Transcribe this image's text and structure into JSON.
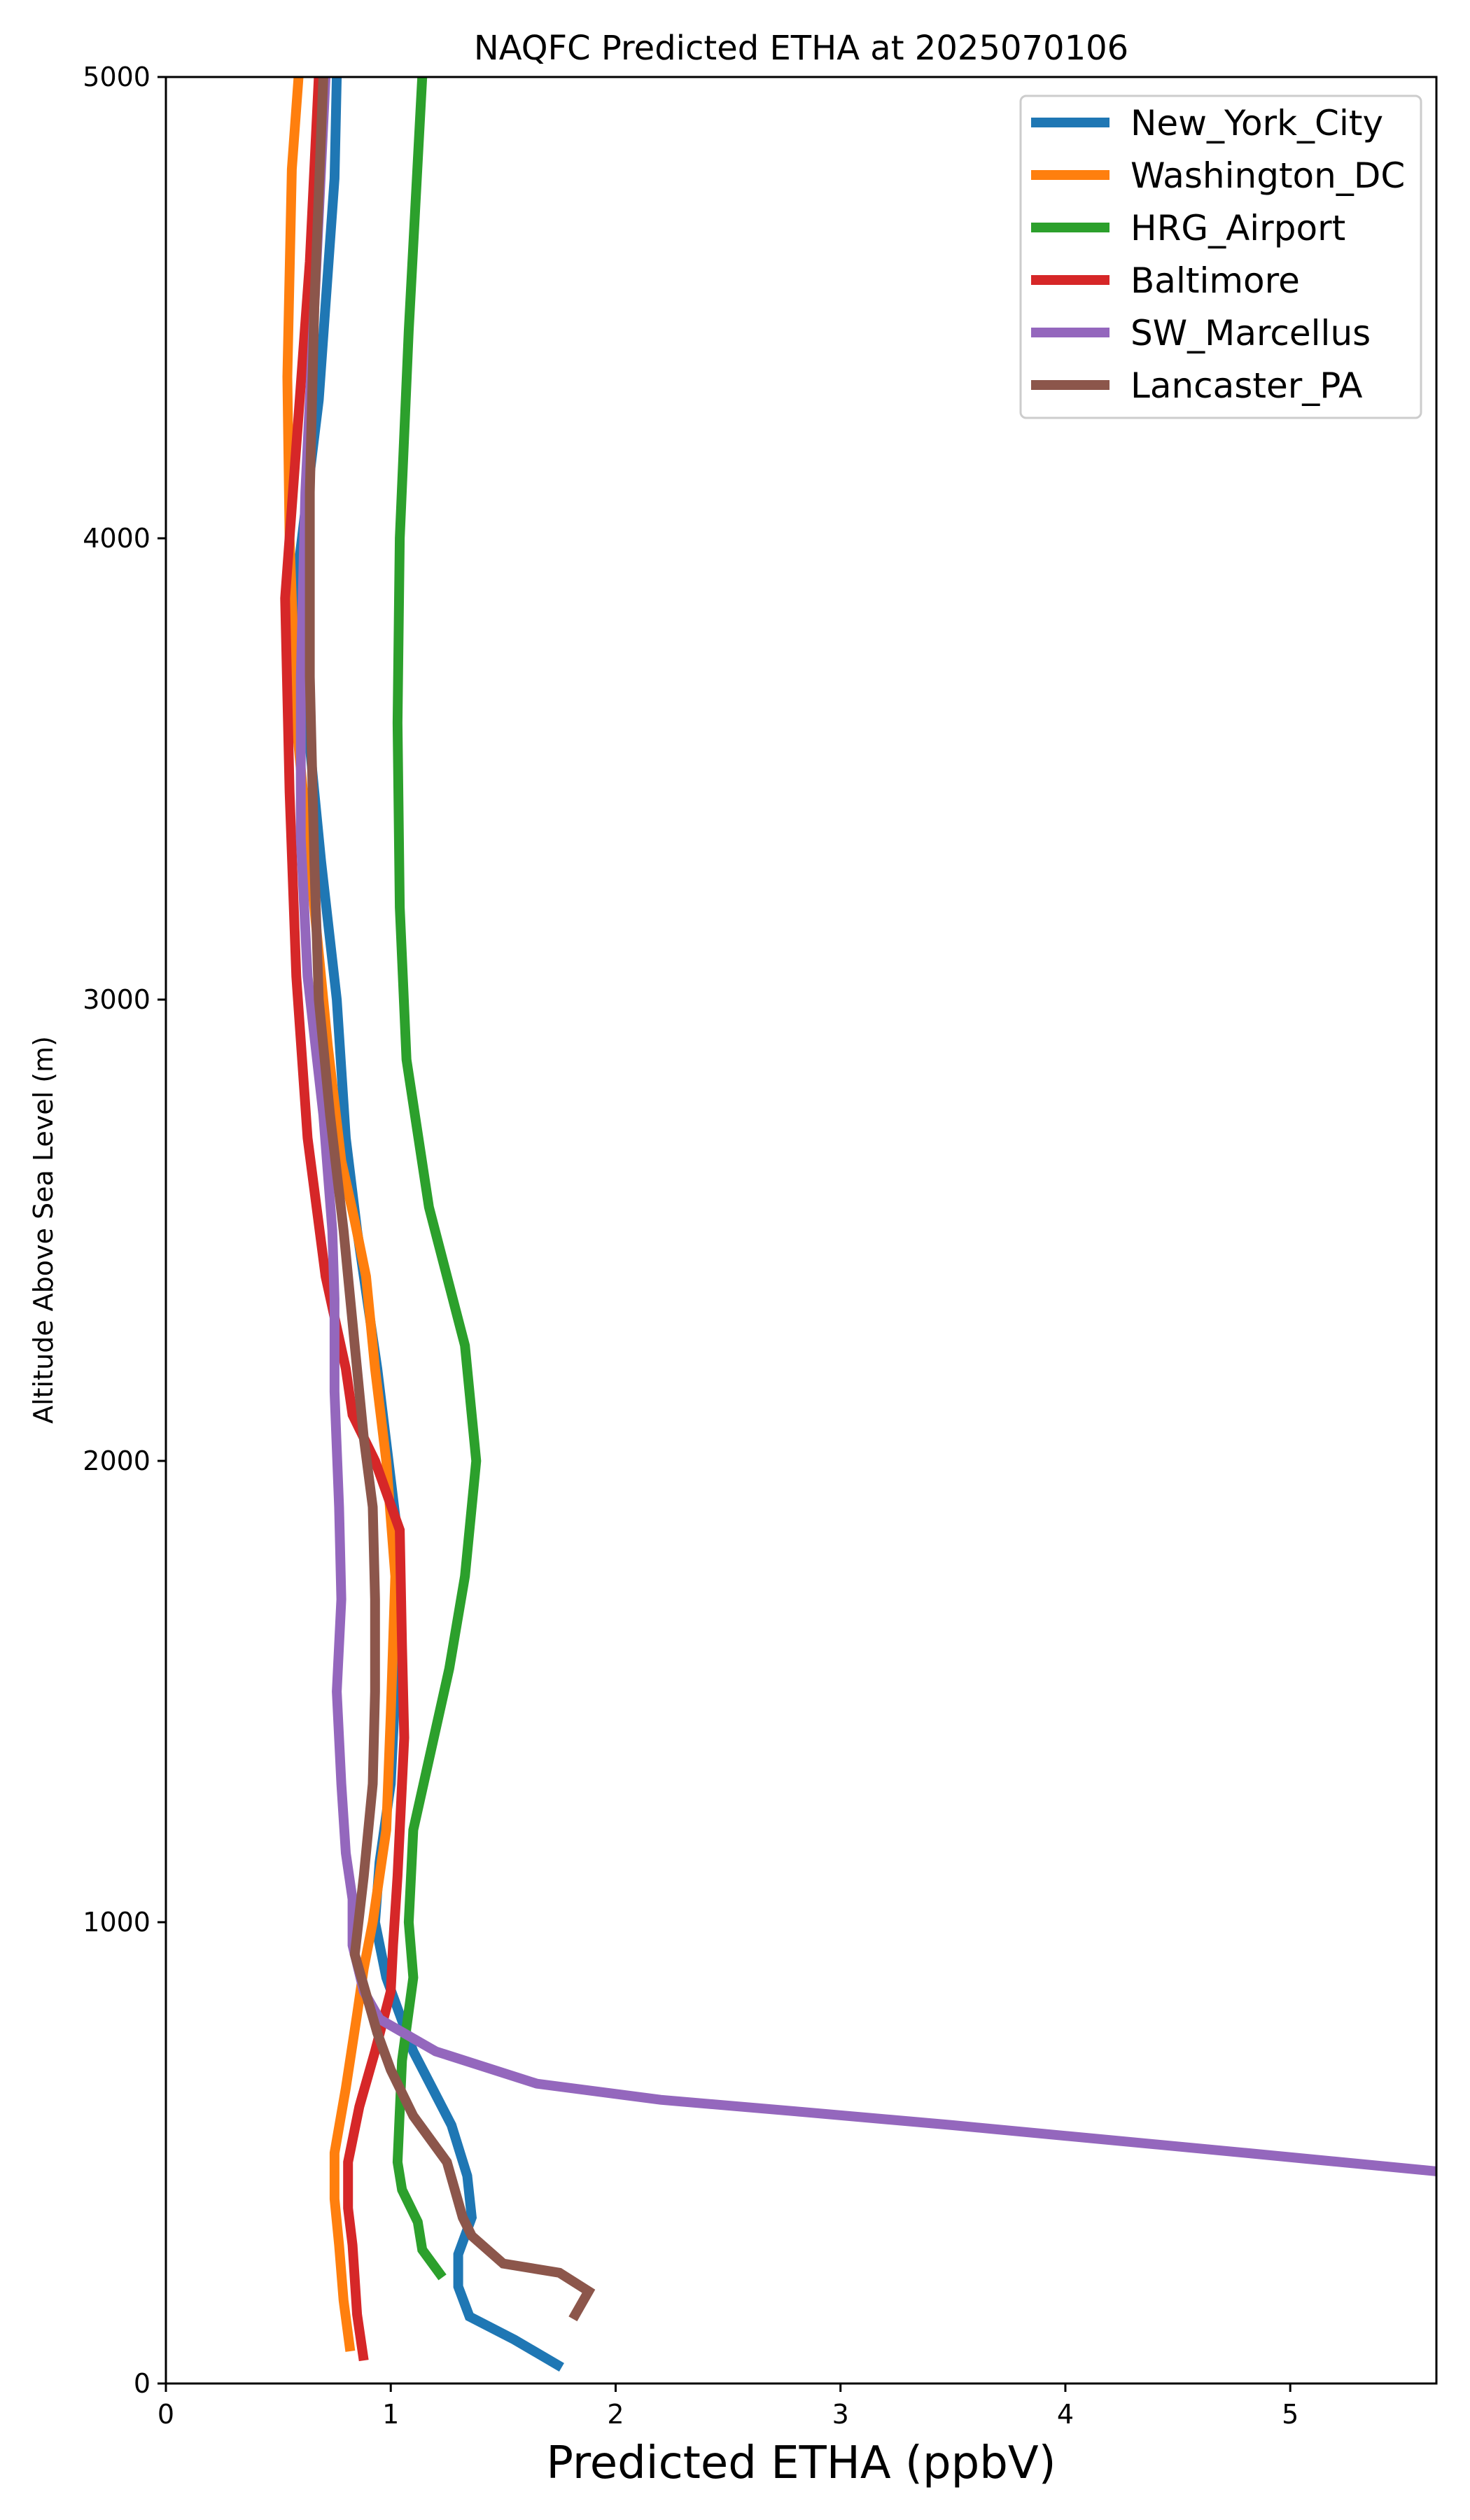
{
  "chart_data": {
    "type": "line",
    "title": "NAQFC Predicted ETHA at 2025070106",
    "xlabel": "Predicted ETHA (ppbV)",
    "ylabel": "Altitude Above Sea Level (m)",
    "xlim": [
      0,
      5.65
    ],
    "ylim": [
      0,
      5000
    ],
    "xticks": [
      0,
      1,
      2,
      3,
      4,
      5
    ],
    "yticks": [
      0,
      1000,
      2000,
      3000,
      4000,
      5000
    ],
    "grid": false,
    "legend_position": "top-right",
    "series": [
      {
        "name": "New_York_City",
        "color": "#1f77b4",
        "points": [
          [
            1.76,
            35
          ],
          [
            1.55,
            95
          ],
          [
            1.35,
            145
          ],
          [
            1.3,
            210
          ],
          [
            1.3,
            280
          ],
          [
            1.36,
            360
          ],
          [
            1.34,
            450
          ],
          [
            1.27,
            560
          ],
          [
            1.1,
            720
          ],
          [
            0.98,
            880
          ],
          [
            0.93,
            1000
          ],
          [
            0.95,
            1130
          ],
          [
            1.0,
            1300
          ],
          [
            1.02,
            1500
          ],
          [
            1.04,
            1800
          ],
          [
            0.94,
            2200
          ],
          [
            0.85,
            2500
          ],
          [
            0.8,
            2700
          ],
          [
            0.76,
            3000
          ],
          [
            0.69,
            3300
          ],
          [
            0.63,
            3600
          ],
          [
            0.58,
            3900
          ],
          [
            0.68,
            4300
          ],
          [
            0.75,
            4780
          ],
          [
            0.76,
            5000
          ]
        ]
      },
      {
        "name": "Washington_DC",
        "color": "#ff7f0e",
        "points": [
          [
            0.82,
            70
          ],
          [
            0.79,
            180
          ],
          [
            0.77,
            300
          ],
          [
            0.75,
            400
          ],
          [
            0.75,
            500
          ],
          [
            0.8,
            640
          ],
          [
            0.85,
            800
          ],
          [
            0.88,
            900
          ],
          [
            0.92,
            1000
          ],
          [
            0.98,
            1200
          ],
          [
            1.0,
            1450
          ],
          [
            1.02,
            1750
          ],
          [
            0.98,
            2000
          ],
          [
            0.93,
            2200
          ],
          [
            0.89,
            2400
          ],
          [
            0.84,
            2520
          ],
          [
            0.78,
            2650
          ],
          [
            0.72,
            2900
          ],
          [
            0.66,
            3200
          ],
          [
            0.58,
            3600
          ],
          [
            0.55,
            4000
          ],
          [
            0.54,
            4350
          ],
          [
            0.56,
            4800
          ],
          [
            0.59,
            5000
          ]
        ]
      },
      {
        "name": "HRG_Airport",
        "color": "#2ca02c",
        "points": [
          [
            1.23,
            230
          ],
          [
            1.14,
            290
          ],
          [
            1.12,
            350
          ],
          [
            1.05,
            420
          ],
          [
            1.03,
            480
          ],
          [
            1.05,
            700
          ],
          [
            1.1,
            880
          ],
          [
            1.08,
            1000
          ],
          [
            1.1,
            1200
          ],
          [
            1.26,
            1550
          ],
          [
            1.33,
            1750
          ],
          [
            1.38,
            2000
          ],
          [
            1.33,
            2250
          ],
          [
            1.17,
            2550
          ],
          [
            1.07,
            2870
          ],
          [
            1.04,
            3200
          ],
          [
            1.03,
            3600
          ],
          [
            1.04,
            4000
          ],
          [
            1.08,
            4450
          ],
          [
            1.14,
            5000
          ]
        ]
      },
      {
        "name": "Baltimore",
        "color": "#d62728",
        "points": [
          [
            0.88,
            50
          ],
          [
            0.85,
            150
          ],
          [
            0.83,
            300
          ],
          [
            0.81,
            380
          ],
          [
            0.81,
            480
          ],
          [
            0.86,
            600
          ],
          [
            0.93,
            720
          ],
          [
            1.0,
            850
          ],
          [
            1.01,
            950
          ],
          [
            1.03,
            1100
          ],
          [
            1.06,
            1400
          ],
          [
            1.05,
            1600
          ],
          [
            1.04,
            1850
          ],
          [
            0.93,
            2000
          ],
          [
            0.83,
            2100
          ],
          [
            0.8,
            2200
          ],
          [
            0.71,
            2400
          ],
          [
            0.63,
            2700
          ],
          [
            0.58,
            3050
          ],
          [
            0.55,
            3450
          ],
          [
            0.53,
            3870
          ],
          [
            0.58,
            4200
          ],
          [
            0.64,
            4600
          ],
          [
            0.68,
            5000
          ]
        ]
      },
      {
        "name": "SW_Marcellus",
        "color": "#9467bd",
        "points": [
          [
            5.65,
            460
          ],
          [
            4.8,
            500
          ],
          [
            3.5,
            560
          ],
          [
            2.8,
            590
          ],
          [
            2.2,
            615
          ],
          [
            1.65,
            650
          ],
          [
            1.2,
            720
          ],
          [
            0.95,
            790
          ],
          [
            0.88,
            850
          ],
          [
            0.83,
            950
          ],
          [
            0.83,
            1050
          ],
          [
            0.8,
            1150
          ],
          [
            0.78,
            1300
          ],
          [
            0.76,
            1500
          ],
          [
            0.78,
            1700
          ],
          [
            0.77,
            1900
          ],
          [
            0.75,
            2150
          ],
          [
            0.75,
            2350
          ],
          [
            0.74,
            2500
          ],
          [
            0.7,
            2750
          ],
          [
            0.63,
            3050
          ],
          [
            0.6,
            3350
          ],
          [
            0.6,
            3700
          ],
          [
            0.62,
            4100
          ],
          [
            0.66,
            4500
          ],
          [
            0.71,
            5000
          ]
        ]
      },
      {
        "name": "Lancaster_PA",
        "color": "#8c564b",
        "points": [
          [
            1.81,
            140
          ],
          [
            1.88,
            200
          ],
          [
            1.75,
            240
          ],
          [
            1.5,
            260
          ],
          [
            1.36,
            320
          ],
          [
            1.32,
            360
          ],
          [
            1.25,
            480
          ],
          [
            1.1,
            580
          ],
          [
            1.0,
            680
          ],
          [
            0.94,
            760
          ],
          [
            0.84,
            930
          ],
          [
            0.88,
            1100
          ],
          [
            0.92,
            1300
          ],
          [
            0.93,
            1500
          ],
          [
            0.93,
            1700
          ],
          [
            0.92,
            1900
          ],
          [
            0.88,
            2050
          ],
          [
            0.84,
            2250
          ],
          [
            0.79,
            2500
          ],
          [
            0.73,
            2750
          ],
          [
            0.68,
            3000
          ],
          [
            0.66,
            3300
          ],
          [
            0.64,
            3700
          ],
          [
            0.64,
            4100
          ],
          [
            0.66,
            4500
          ],
          [
            0.7,
            5000
          ]
        ]
      }
    ]
  }
}
